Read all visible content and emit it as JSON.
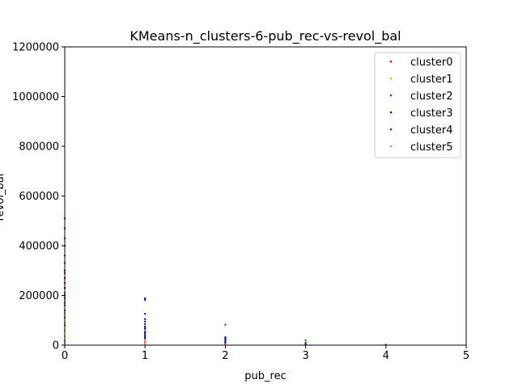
{
  "chart_data": {
    "type": "scatter",
    "title": "KMeans-n_clusters-6-pub_rec-vs-revol_bal",
    "xlabel": "pub_rec",
    "ylabel": "revol_bal",
    "xlim": [
      0,
      5
    ],
    "ylim": [
      0,
      1200000
    ],
    "xticks": [
      "0",
      "1",
      "2",
      "3",
      "4",
      "5"
    ],
    "yticks": [
      "0",
      "200000",
      "400000",
      "600000",
      "800000",
      "1000000",
      "1200000"
    ],
    "grid": false,
    "legend_position": "top-right",
    "series": [
      {
        "name": "cluster0",
        "color": "#ff0000",
        "points": [
          [
            0,
            510000
          ],
          [
            0,
            470000
          ],
          [
            0,
            430000
          ],
          [
            0,
            400000
          ],
          [
            0,
            360000
          ],
          [
            0,
            330000
          ],
          [
            0,
            290000
          ],
          [
            0,
            250000
          ],
          [
            0,
            210000
          ],
          [
            0,
            190000
          ],
          [
            1,
            25000
          ],
          [
            1,
            15000
          ],
          [
            2,
            8000
          ]
        ]
      },
      {
        "name": "cluster1",
        "color": "#ffa500",
        "points": [
          [
            0,
            120000
          ],
          [
            0,
            90000
          ],
          [
            0,
            60000
          ],
          [
            0,
            35000
          ],
          [
            1,
            20000
          ],
          [
            1,
            10000
          ],
          [
            2,
            4000
          ]
        ]
      },
      {
        "name": "cluster2",
        "color": "#008000",
        "points": [
          [
            0,
            170000
          ],
          [
            0,
            140000
          ],
          [
            0,
            110000
          ],
          [
            0,
            80000
          ],
          [
            1,
            35000
          ],
          [
            2,
            82000
          ],
          [
            2,
            22000
          ],
          [
            3,
            20000
          ],
          [
            3,
            10000
          ],
          [
            4,
            2000
          ]
        ]
      },
      {
        "name": "cluster3",
        "color": "#0000ff",
        "points": [
          [
            0,
            230000
          ],
          [
            0,
            200000
          ],
          [
            1,
            188000
          ],
          [
            1,
            182000
          ],
          [
            1,
            126000
          ],
          [
            1,
            105000
          ],
          [
            1,
            95000
          ],
          [
            1,
            85000
          ],
          [
            1,
            75000
          ],
          [
            1,
            65000
          ],
          [
            1,
            55000
          ],
          [
            1,
            45000
          ],
          [
            1,
            38000
          ],
          [
            1,
            30000
          ],
          [
            2,
            32000
          ],
          [
            2,
            26000
          ],
          [
            2,
            18000
          ],
          [
            2,
            12000
          ],
          [
            3,
            5000
          ]
        ]
      },
      {
        "name": "cluster4",
        "color": "#800080",
        "points": [
          [
            0,
            300000
          ],
          [
            0,
            270000
          ],
          [
            0,
            160000
          ],
          [
            1,
            70000
          ],
          [
            1,
            50000
          ],
          [
            2,
            10000
          ],
          [
            2,
            6000
          ],
          [
            3,
            2000
          ]
        ]
      },
      {
        "name": "cluster5",
        "color": "#ff69b4",
        "points": [
          [
            0,
            180000
          ],
          [
            0,
            130000
          ],
          [
            0,
            20000
          ],
          [
            0,
            10000
          ],
          [
            1,
            12000
          ],
          [
            1,
            5000
          ],
          [
            2,
            3000
          ]
        ]
      }
    ]
  }
}
